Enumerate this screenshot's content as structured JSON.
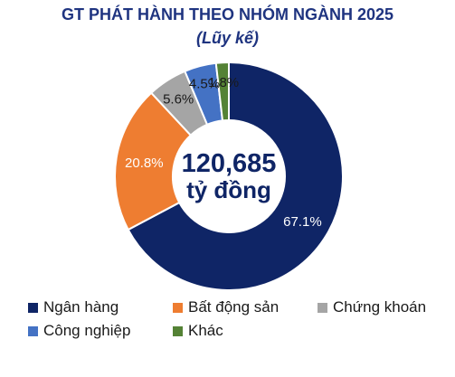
{
  "chart_data": {
    "type": "pie",
    "title": "GT PHÁT HÀNH THEO NHÓM NGÀNH 2025",
    "subtitle": "(Lũy kế)",
    "center_value": "120,685",
    "center_unit": "tỷ đồng",
    "categories": [
      "Ngân hàng",
      "Bất động sản",
      "Chứng khoán",
      "Công nghiệp",
      "Khác"
    ],
    "values": [
      67.1,
      20.8,
      5.6,
      4.5,
      1.8
    ],
    "labels": [
      "67.1%",
      "20.8%",
      "5.6%",
      "4.5%",
      "1.8%"
    ],
    "colors": [
      "#0f2566",
      "#ee7d31",
      "#a5a5a5",
      "#4472c4",
      "#548235"
    ],
    "legend_position": "bottom"
  }
}
